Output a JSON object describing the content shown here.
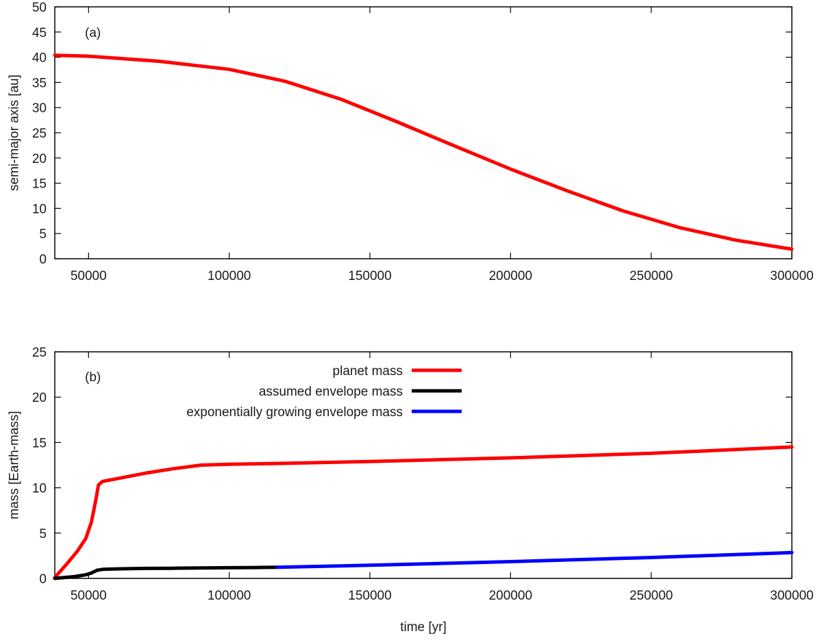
{
  "chart_data": [
    {
      "type": "line",
      "panel": "(a)",
      "xlabel": "",
      "ylabel": "semi-major axis [au]",
      "xlim": [
        38000,
        300000
      ],
      "ylim": [
        0,
        50
      ],
      "xticks": [
        50000,
        100000,
        150000,
        200000,
        250000,
        300000
      ],
      "yticks": [
        0,
        5,
        10,
        15,
        20,
        25,
        30,
        35,
        40,
        45,
        50
      ],
      "grid": false,
      "series": [
        {
          "name": "",
          "color": "#ff0000",
          "x": [
            38000,
            50000,
            75000,
            100000,
            120000,
            140000,
            160000,
            180000,
            200000,
            220000,
            240000,
            260000,
            280000,
            300000
          ],
          "y": [
            40.4,
            40.2,
            39.2,
            37.6,
            35.2,
            31.6,
            27.1,
            22.4,
            17.8,
            13.5,
            9.5,
            6.2,
            3.7,
            1.9
          ]
        }
      ]
    },
    {
      "type": "line",
      "panel": "(b)",
      "xlabel": "time [yr]",
      "ylabel": "mass [Earth-mass]",
      "xlim": [
        38000,
        300000
      ],
      "ylim": [
        0,
        25
      ],
      "xticks": [
        50000,
        100000,
        150000,
        200000,
        250000,
        300000
      ],
      "yticks": [
        0,
        5,
        10,
        15,
        20,
        25
      ],
      "grid": false,
      "legend_position": "top-center",
      "series": [
        {
          "name": "planet mass",
          "color": "#ff0000",
          "x": [
            38000,
            42000,
            46000,
            49000,
            51000,
            52500,
            53500,
            55000,
            60000,
            70000,
            80000,
            90000,
            100000,
            120000,
            150000,
            200000,
            250000,
            300000
          ],
          "y": [
            0.1,
            1.5,
            3.0,
            4.4,
            6.2,
            8.5,
            10.3,
            10.7,
            11.0,
            11.6,
            12.1,
            12.5,
            12.6,
            12.7,
            12.9,
            13.3,
            13.8,
            14.5
          ]
        },
        {
          "name": "assumed envelope mass",
          "color": "#000000",
          "x": [
            38000,
            45000,
            49000,
            51000,
            53000,
            55000,
            60000,
            70000,
            80000,
            90000,
            100000,
            110000,
            117000
          ],
          "y": [
            0.0,
            0.2,
            0.4,
            0.6,
            0.9,
            1.0,
            1.05,
            1.1,
            1.12,
            1.15,
            1.18,
            1.2,
            1.22
          ]
        },
        {
          "name": "exponentially growing envelope mass",
          "color": "#0000ff",
          "x": [
            117000,
            150000,
            200000,
            250000,
            300000
          ],
          "y": [
            1.22,
            1.45,
            1.85,
            2.3,
            2.85
          ]
        }
      ]
    }
  ]
}
